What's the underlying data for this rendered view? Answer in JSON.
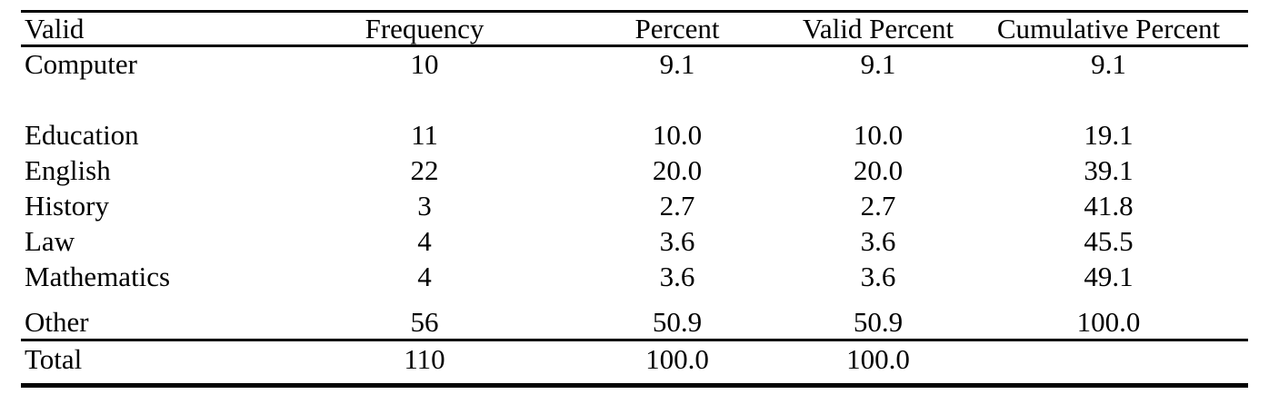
{
  "table": {
    "headers": [
      "Valid",
      "Frequency",
      "Percent",
      "Valid Percent",
      "Cumulative Percent"
    ],
    "rows": [
      [
        "Computer",
        "10",
        "9.1",
        "9.1",
        "9.1"
      ],
      [
        "Education",
        "11",
        "10.0",
        "10.0",
        "19.1"
      ],
      [
        "English",
        "22",
        "20.0",
        "20.0",
        "39.1"
      ],
      [
        "History",
        "3",
        "2.7",
        "2.7",
        "41.8"
      ],
      [
        "Law",
        "4",
        "3.6",
        "3.6",
        "45.5"
      ],
      [
        "Mathematics",
        "4",
        "3.6",
        "3.6",
        "49.1"
      ],
      [
        "Other",
        "56",
        "50.9",
        "50.9",
        "100.0"
      ]
    ],
    "total_row": [
      "Total",
      "110",
      "100.0",
      "100.0",
      ""
    ],
    "text_color": "#000000",
    "background_color": "#ffffff"
  }
}
